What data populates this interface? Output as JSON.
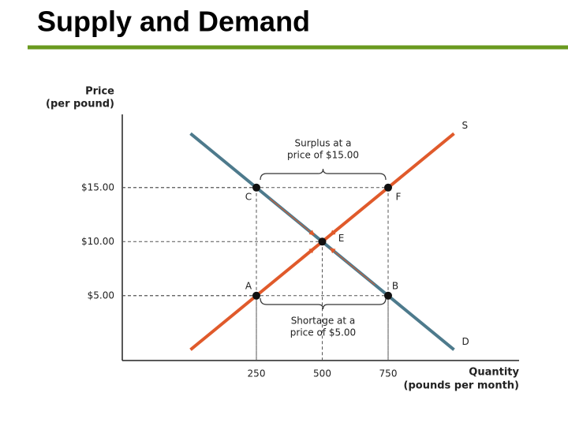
{
  "chart_data": {
    "type": "line",
    "title": "Supply and Demand",
    "ylabel": [
      "Price",
      "(per pound)"
    ],
    "xlabel": [
      "Quantity",
      "(pounds per month)"
    ],
    "xlim": [
      -250,
      1250
    ],
    "ylim": [
      -1,
      21
    ],
    "xticks": [
      250,
      500,
      750
    ],
    "yticks": [
      {
        "value": 5,
        "label": "$5.00"
      },
      {
        "value": 10,
        "label": "$10.00"
      },
      {
        "value": 15,
        "label": "$15.00"
      }
    ],
    "grid": false,
    "series": [
      {
        "name": "S",
        "color": "#e05a2b",
        "x": [
          0,
          1000
        ],
        "values": [
          0,
          20
        ]
      },
      {
        "name": "D",
        "color": "#4d7a8c",
        "x": [
          0,
          1000
        ],
        "values": [
          20,
          0
        ]
      }
    ],
    "points": [
      {
        "label": "C",
        "x": 250,
        "y": 15
      },
      {
        "label": "F",
        "x": 750,
        "y": 15
      },
      {
        "label": "E",
        "x": 500,
        "y": 10
      },
      {
        "label": "A",
        "x": 250,
        "y": 5
      },
      {
        "label": "B",
        "x": 750,
        "y": 5
      }
    ],
    "annotations": [
      {
        "text": [
          "Surplus at a",
          "price of $15.00"
        ]
      },
      {
        "text": [
          "Shortage at a",
          "price of $5.00"
        ]
      }
    ]
  }
}
